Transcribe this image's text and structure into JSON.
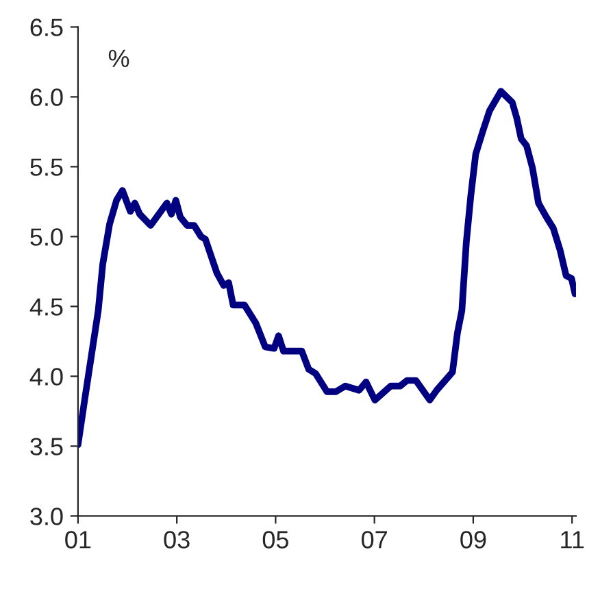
{
  "chart_data": {
    "type": "line",
    "ylabel": "%",
    "x": [
      1.0,
      1.13,
      1.41,
      1.5,
      1.64,
      1.78,
      1.9,
      2.06,
      2.15,
      2.25,
      2.47,
      2.8,
      2.89,
      2.98,
      3.07,
      3.21,
      3.35,
      3.49,
      3.58,
      3.81,
      3.95,
      4.05,
      4.14,
      4.37,
      4.6,
      4.79,
      4.97,
      5.06,
      5.16,
      5.53,
      5.67,
      5.81,
      6.04,
      6.22,
      6.41,
      6.69,
      6.83,
      7.01,
      7.33,
      7.52,
      7.66,
      7.84,
      8.12,
      8.26,
      8.58,
      8.68,
      8.77,
      8.86,
      8.95,
      9.05,
      9.19,
      9.33,
      9.56,
      9.79,
      9.88,
      9.97,
      10.08,
      10.2,
      10.32,
      10.48,
      10.62,
      10.76,
      10.88,
      10.99,
      11.06
    ],
    "series": [
      {
        "color": "#000080",
        "values": [
          3.51,
          3.82,
          4.47,
          4.8,
          5.09,
          5.26,
          5.33,
          5.18,
          5.24,
          5.16,
          5.08,
          5.24,
          5.16,
          5.26,
          5.14,
          5.08,
          5.08,
          5.0,
          4.98,
          4.74,
          4.65,
          4.67,
          4.51,
          4.51,
          4.38,
          4.21,
          4.2,
          4.29,
          4.18,
          4.18,
          4.05,
          4.02,
          3.89,
          3.89,
          3.93,
          3.9,
          3.96,
          3.83,
          3.93,
          3.93,
          3.97,
          3.97,
          3.83,
          3.9,
          4.03,
          4.31,
          4.47,
          4.96,
          5.29,
          5.59,
          5.75,
          5.9,
          6.04,
          5.96,
          5.85,
          5.7,
          5.65,
          5.49,
          5.24,
          5.14,
          5.06,
          4.9,
          4.72,
          4.7,
          4.59
        ]
      }
    ],
    "xlim": [
      1,
      11.08
    ],
    "ylim": [
      3.0,
      6.5
    ],
    "xticks": [
      {
        "value": 1,
        "label": "01"
      },
      {
        "value": 3,
        "label": "03"
      },
      {
        "value": 5,
        "label": "05"
      },
      {
        "value": 7,
        "label": "07"
      },
      {
        "value": 9,
        "label": "09"
      },
      {
        "value": 11,
        "label": "11"
      }
    ],
    "yticks": [
      {
        "value": 3.0,
        "label": "3.0"
      },
      {
        "value": 3.5,
        "label": "3.5"
      },
      {
        "value": 4.0,
        "label": "4.0"
      },
      {
        "value": 4.5,
        "label": "4.5"
      },
      {
        "value": 5.0,
        "label": "5.0"
      },
      {
        "value": 5.5,
        "label": "5.5"
      },
      {
        "value": 6.0,
        "label": "6.0"
      },
      {
        "value": 6.5,
        "label": "6.5"
      }
    ],
    "grid": false,
    "legend": false
  }
}
